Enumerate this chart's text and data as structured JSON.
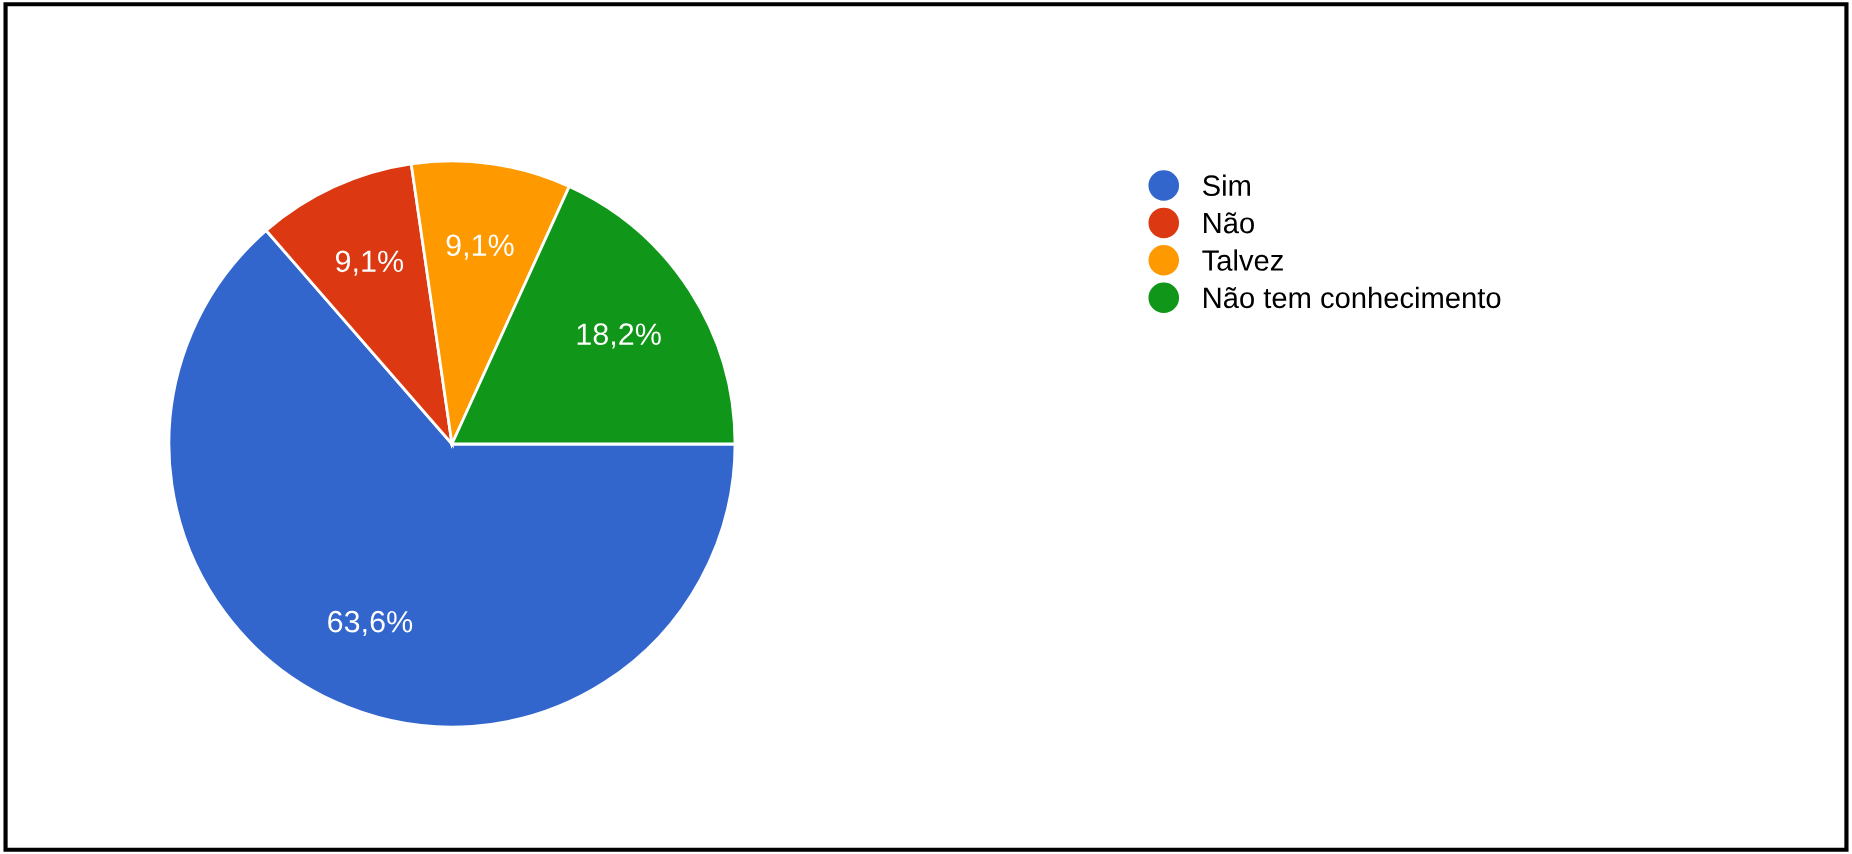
{
  "chart_data": {
    "type": "pie",
    "categories": [
      "Sim",
      "Não",
      "Talvez",
      "Não tem conhecimento"
    ],
    "values": [
      63.6,
      9.1,
      9.1,
      18.2
    ],
    "colors": [
      "#3366cc",
      "#dc3912",
      "#ff9900",
      "#109618"
    ],
    "value_labels": [
      "63,6%",
      "9,1%",
      "9,1%",
      "18,2%"
    ],
    "legend": "right"
  }
}
